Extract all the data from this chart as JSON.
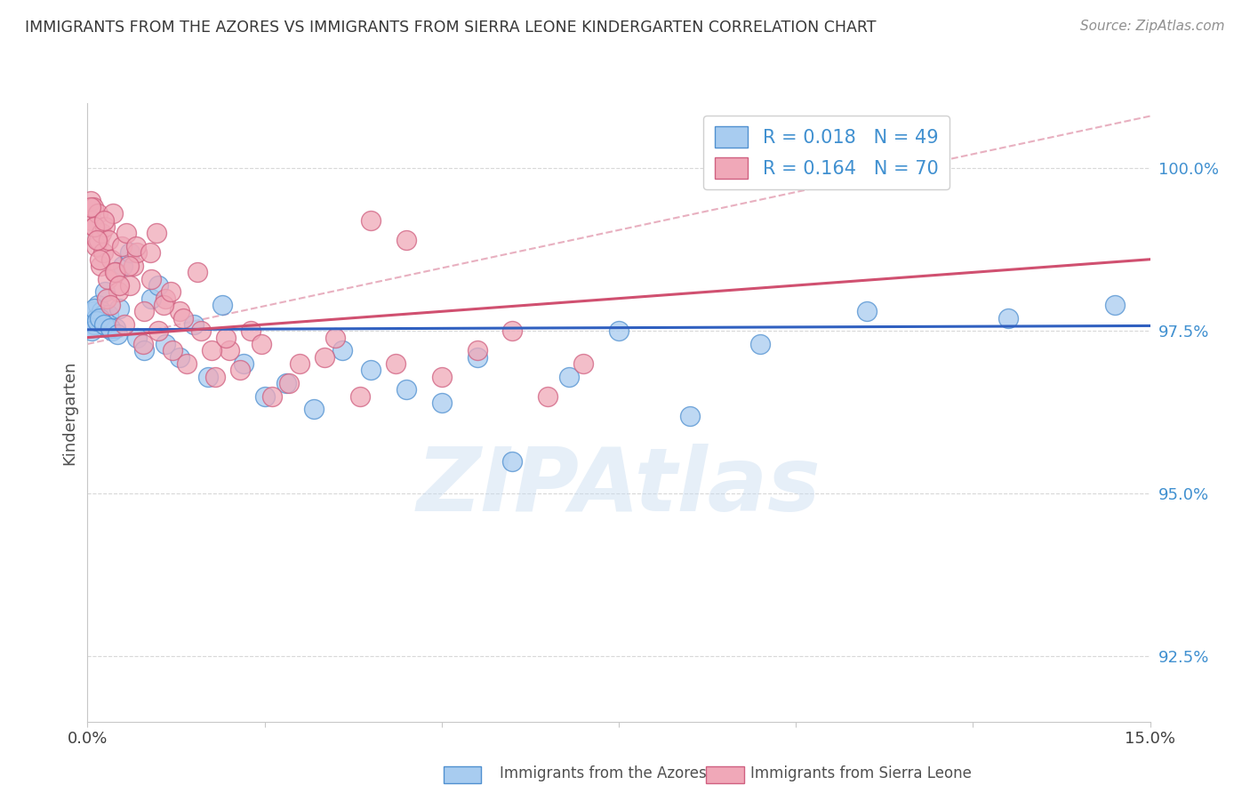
{
  "title": "IMMIGRANTS FROM THE AZORES VS IMMIGRANTS FROM SIERRA LEONE KINDERGARTEN CORRELATION CHART",
  "source": "Source: ZipAtlas.com",
  "ylabel": "Kindergarten",
  "legend_label_blue": "Immigrants from the Azores",
  "legend_label_pink": "Immigrants from Sierra Leone",
  "R_blue": 0.018,
  "N_blue": 49,
  "R_pink": 0.164,
  "N_pink": 70,
  "xmin": 0.0,
  "xmax": 15.0,
  "ymin": 91.5,
  "ymax": 101.0,
  "yticks": [
    92.5,
    95.0,
    97.5,
    100.0
  ],
  "ytick_labels": [
    "92.5%",
    "95.0%",
    "97.5%",
    "100.0%"
  ],
  "color_blue": "#A8CCF0",
  "color_blue_edge": "#5090D0",
  "color_pink": "#F0A8B8",
  "color_pink_edge": "#D06080",
  "color_trend_blue": "#3060C0",
  "color_trend_pink": "#D05070",
  "color_diag": "#E0C0C8",
  "color_ytick": "#4090D0",
  "color_grid": "#D8D8D8",
  "watermark": "ZIPAtlas",
  "blue_trend_y0": 97.52,
  "blue_trend_y1": 97.58,
  "pink_trend_y0": 97.4,
  "pink_trend_y1": 98.6,
  "blue_x": [
    0.05,
    0.08,
    0.1,
    0.12,
    0.15,
    0.18,
    0.2,
    0.22,
    0.25,
    0.28,
    0.3,
    0.35,
    0.4,
    0.45,
    0.5,
    0.6,
    0.7,
    0.8,
    0.9,
    1.0,
    1.1,
    1.3,
    1.5,
    1.7,
    1.9,
    2.2,
    2.5,
    2.8,
    3.2,
    3.6,
    4.0,
    4.5,
    5.0,
    5.5,
    6.0,
    6.8,
    7.5,
    8.5,
    9.5,
    11.0,
    13.0,
    14.5,
    0.06,
    0.09,
    0.13,
    0.17,
    0.23,
    0.32,
    0.42
  ],
  "blue_y": [
    97.55,
    97.8,
    97.6,
    97.7,
    97.9,
    97.65,
    97.8,
    97.75,
    98.1,
    97.55,
    97.75,
    97.5,
    97.55,
    97.85,
    98.5,
    98.7,
    97.4,
    97.2,
    98.0,
    98.2,
    97.3,
    97.1,
    97.6,
    96.8,
    97.9,
    97.0,
    96.5,
    96.7,
    96.3,
    97.2,
    96.9,
    96.6,
    96.4,
    97.1,
    95.5,
    96.8,
    97.5,
    96.2,
    97.3,
    97.8,
    97.7,
    97.9,
    97.5,
    97.85,
    97.65,
    97.7,
    97.6,
    97.55,
    97.45
  ],
  "pink_x": [
    0.04,
    0.06,
    0.08,
    0.1,
    0.12,
    0.14,
    0.16,
    0.18,
    0.2,
    0.22,
    0.25,
    0.28,
    0.3,
    0.33,
    0.36,
    0.4,
    0.44,
    0.48,
    0.55,
    0.6,
    0.65,
    0.7,
    0.8,
    0.9,
    1.0,
    1.1,
    1.2,
    1.3,
    1.4,
    1.6,
    1.8,
    2.0,
    2.3,
    2.6,
    3.0,
    3.5,
    4.0,
    4.5,
    5.0,
    5.5,
    6.0,
    6.5,
    7.0,
    0.05,
    0.09,
    0.13,
    0.17,
    0.23,
    0.27,
    0.32,
    0.38,
    0.45,
    0.52,
    0.58,
    0.68,
    0.78,
    0.88,
    0.98,
    1.08,
    1.18,
    1.35,
    1.55,
    1.75,
    1.95,
    2.15,
    2.45,
    2.85,
    3.35,
    3.85,
    4.35
  ],
  "pink_y": [
    99.5,
    99.2,
    99.4,
    99.1,
    98.8,
    99.3,
    98.9,
    98.5,
    99.0,
    98.7,
    99.1,
    98.3,
    98.9,
    98.6,
    99.3,
    98.4,
    98.1,
    98.8,
    99.0,
    98.2,
    98.5,
    98.7,
    97.8,
    98.3,
    97.5,
    98.0,
    97.2,
    97.8,
    97.0,
    97.5,
    96.8,
    97.2,
    97.5,
    96.5,
    97.0,
    97.4,
    99.2,
    98.9,
    96.8,
    97.2,
    97.5,
    96.5,
    97.0,
    99.4,
    99.1,
    98.9,
    98.6,
    99.2,
    98.0,
    97.9,
    98.4,
    98.2,
    97.6,
    98.5,
    98.8,
    97.3,
    98.7,
    99.0,
    97.9,
    98.1,
    97.7,
    98.4,
    97.2,
    97.4,
    96.9,
    97.3,
    96.7,
    97.1,
    96.5,
    97.0
  ]
}
